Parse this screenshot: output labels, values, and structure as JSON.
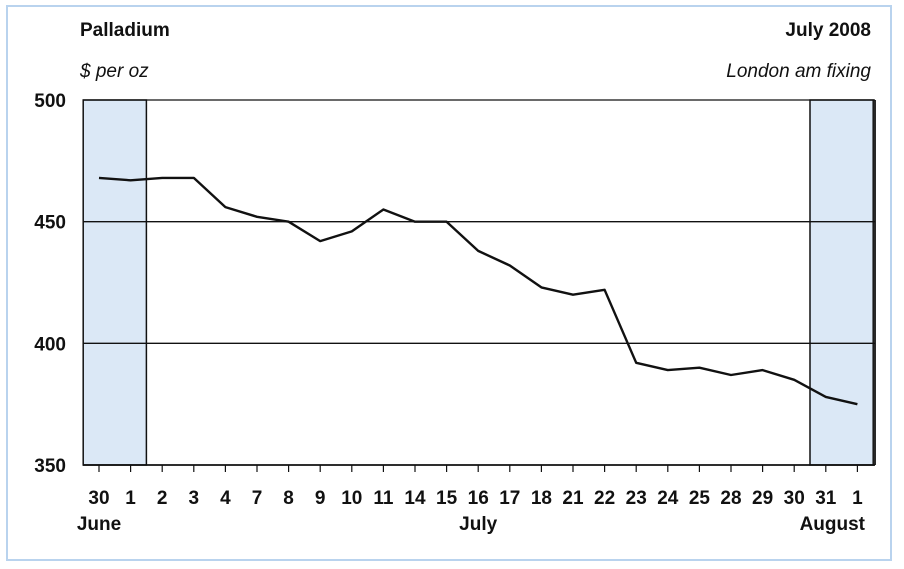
{
  "chart_data": {
    "type": "line",
    "title": "Palladium",
    "subtitle_left": "$ per oz",
    "subtitle_right_top": "July 2008",
    "subtitle_right": "London am fixing",
    "ylim": [
      350,
      500
    ],
    "yticks": [
      "500",
      "450",
      "400",
      "350"
    ],
    "ytick_values": [
      500,
      450,
      400,
      350
    ],
    "grid": true,
    "x_tick_labels": [
      "30",
      "1",
      "2",
      "3",
      "4",
      "7",
      "8",
      "9",
      "10",
      "11",
      "14",
      "15",
      "16",
      "17",
      "18",
      "21",
      "22",
      "23",
      "24",
      "25",
      "28",
      "29",
      "30",
      "31",
      "1"
    ],
    "month_labels": [
      {
        "label": "June",
        "tick_index": 0
      },
      {
        "label": "July",
        "tick_index": 12
      },
      {
        "label": "August",
        "tick_index": 24
      }
    ],
    "shaded_regions": [
      {
        "from_index": 0,
        "to_index": 1,
        "color": "#dbe8f6"
      },
      {
        "from_index": 23,
        "to_index": 24,
        "color": "#dbe8f6"
      }
    ],
    "series": [
      {
        "values": [
          468,
          467,
          468,
          468,
          456,
          452,
          450,
          442,
          446,
          455,
          450,
          450,
          438,
          432,
          423,
          420,
          422,
          392,
          389,
          390,
          387,
          389,
          385,
          378,
          375
        ],
        "color": "#111111"
      }
    ]
  }
}
